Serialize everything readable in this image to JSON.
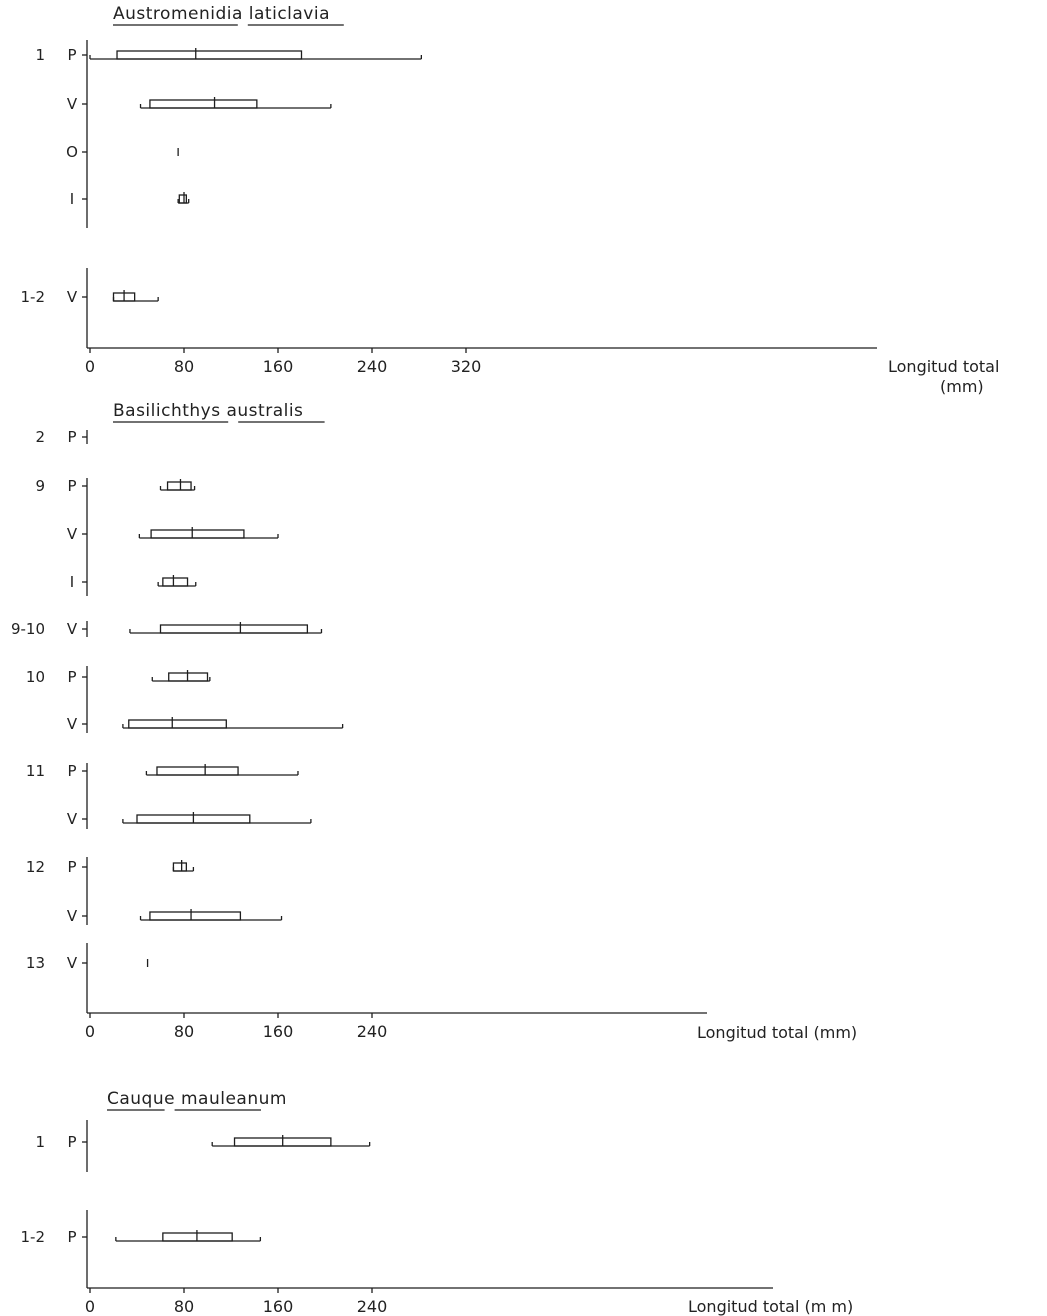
{
  "chart_data": [
    {
      "type": "box",
      "title": "Austromenidia laticlavia",
      "xlabel": "Longitud total",
      "xlabel_unit": "(mm)",
      "xlim": [
        0,
        320
      ],
      "xticks": [
        0,
        80,
        160,
        240,
        320
      ],
      "groups": [
        {
          "label": "1",
          "rows": [
            {
              "label": "P",
              "min": 0,
              "q1": 23,
              "median": 90,
              "q3": 180,
              "max": 282
            },
            {
              "label": "V",
              "min": 43,
              "q1": 51,
              "median": 106,
              "q3": 142,
              "max": 205
            },
            {
              "label": "O",
              "min": 75,
              "q1": 75,
              "median": 75,
              "q3": 75,
              "max": 75
            },
            {
              "label": "I",
              "min": 75,
              "q1": 76,
              "median": 80,
              "q3": 82,
              "max": 84
            }
          ]
        },
        {
          "label": "1-2",
          "rows": [
            {
              "label": "V",
              "min": 20,
              "q1": 20,
              "median": 29,
              "q3": 38,
              "max": 58
            }
          ]
        }
      ]
    },
    {
      "type": "box",
      "title": "Basilichthys australis",
      "xlabel": "Longitud total (mm)",
      "xlim": [
        0,
        240
      ],
      "xticks": [
        0,
        80,
        160,
        240
      ],
      "groups": [
        {
          "label": "2",
          "rows": [
            {
              "label": "P",
              "min": null,
              "q1": null,
              "median": null,
              "q3": null,
              "max": null
            }
          ]
        },
        {
          "label": "9",
          "rows": [
            {
              "label": "P",
              "min": 60,
              "q1": 66,
              "median": 77,
              "q3": 86,
              "max": 89
            },
            {
              "label": "V",
              "min": 42,
              "q1": 52,
              "median": 87,
              "q3": 131,
              "max": 160
            },
            {
              "label": "I",
              "min": 58,
              "q1": 62,
              "median": 71,
              "q3": 83,
              "max": 90
            }
          ]
        },
        {
          "label": "9-10",
          "rows": [
            {
              "label": "V",
              "min": 34,
              "q1": 60,
              "median": 128,
              "q3": 185,
              "max": 197
            }
          ]
        },
        {
          "label": "10",
          "rows": [
            {
              "label": "P",
              "min": 53,
              "q1": 67,
              "median": 83,
              "q3": 100,
              "max": 102
            },
            {
              "label": "V",
              "min": 28,
              "q1": 33,
              "median": 70,
              "q3": 116,
              "max": 215
            }
          ]
        },
        {
          "label": "11",
          "rows": [
            {
              "label": "P",
              "min": 48,
              "q1": 57,
              "median": 98,
              "q3": 126,
              "max": 177
            },
            {
              "label": "V",
              "min": 28,
              "q1": 40,
              "median": 88,
              "q3": 136,
              "max": 188
            }
          ]
        },
        {
          "label": "12",
          "rows": [
            {
              "label": "P",
              "min": 71,
              "q1": 71,
              "median": 78,
              "q3": 82,
              "max": 88
            },
            {
              "label": "V",
              "min": 43,
              "q1": 51,
              "median": 86,
              "q3": 128,
              "max": 163
            }
          ]
        },
        {
          "label": "13",
          "rows": [
            {
              "label": "V",
              "min": 49,
              "q1": 49,
              "median": 49,
              "q3": 49,
              "max": 49
            }
          ]
        }
      ]
    },
    {
      "type": "box",
      "title": "Cauque mauleanum",
      "xlabel": "Longitud total (m m)",
      "xlim": [
        0,
        280
      ],
      "xticks": [
        0,
        80,
        160,
        240
      ],
      "groups": [
        {
          "label": "1",
          "rows": [
            {
              "label": "P",
              "min": 104,
              "q1": 123,
              "median": 164,
              "q3": 205,
              "max": 238
            }
          ]
        },
        {
          "label": "1-2",
          "rows": [
            {
              "label": "P",
              "min": 22,
              "q1": 62,
              "median": 91,
              "q3": 121,
              "max": 145
            }
          ]
        }
      ]
    }
  ]
}
